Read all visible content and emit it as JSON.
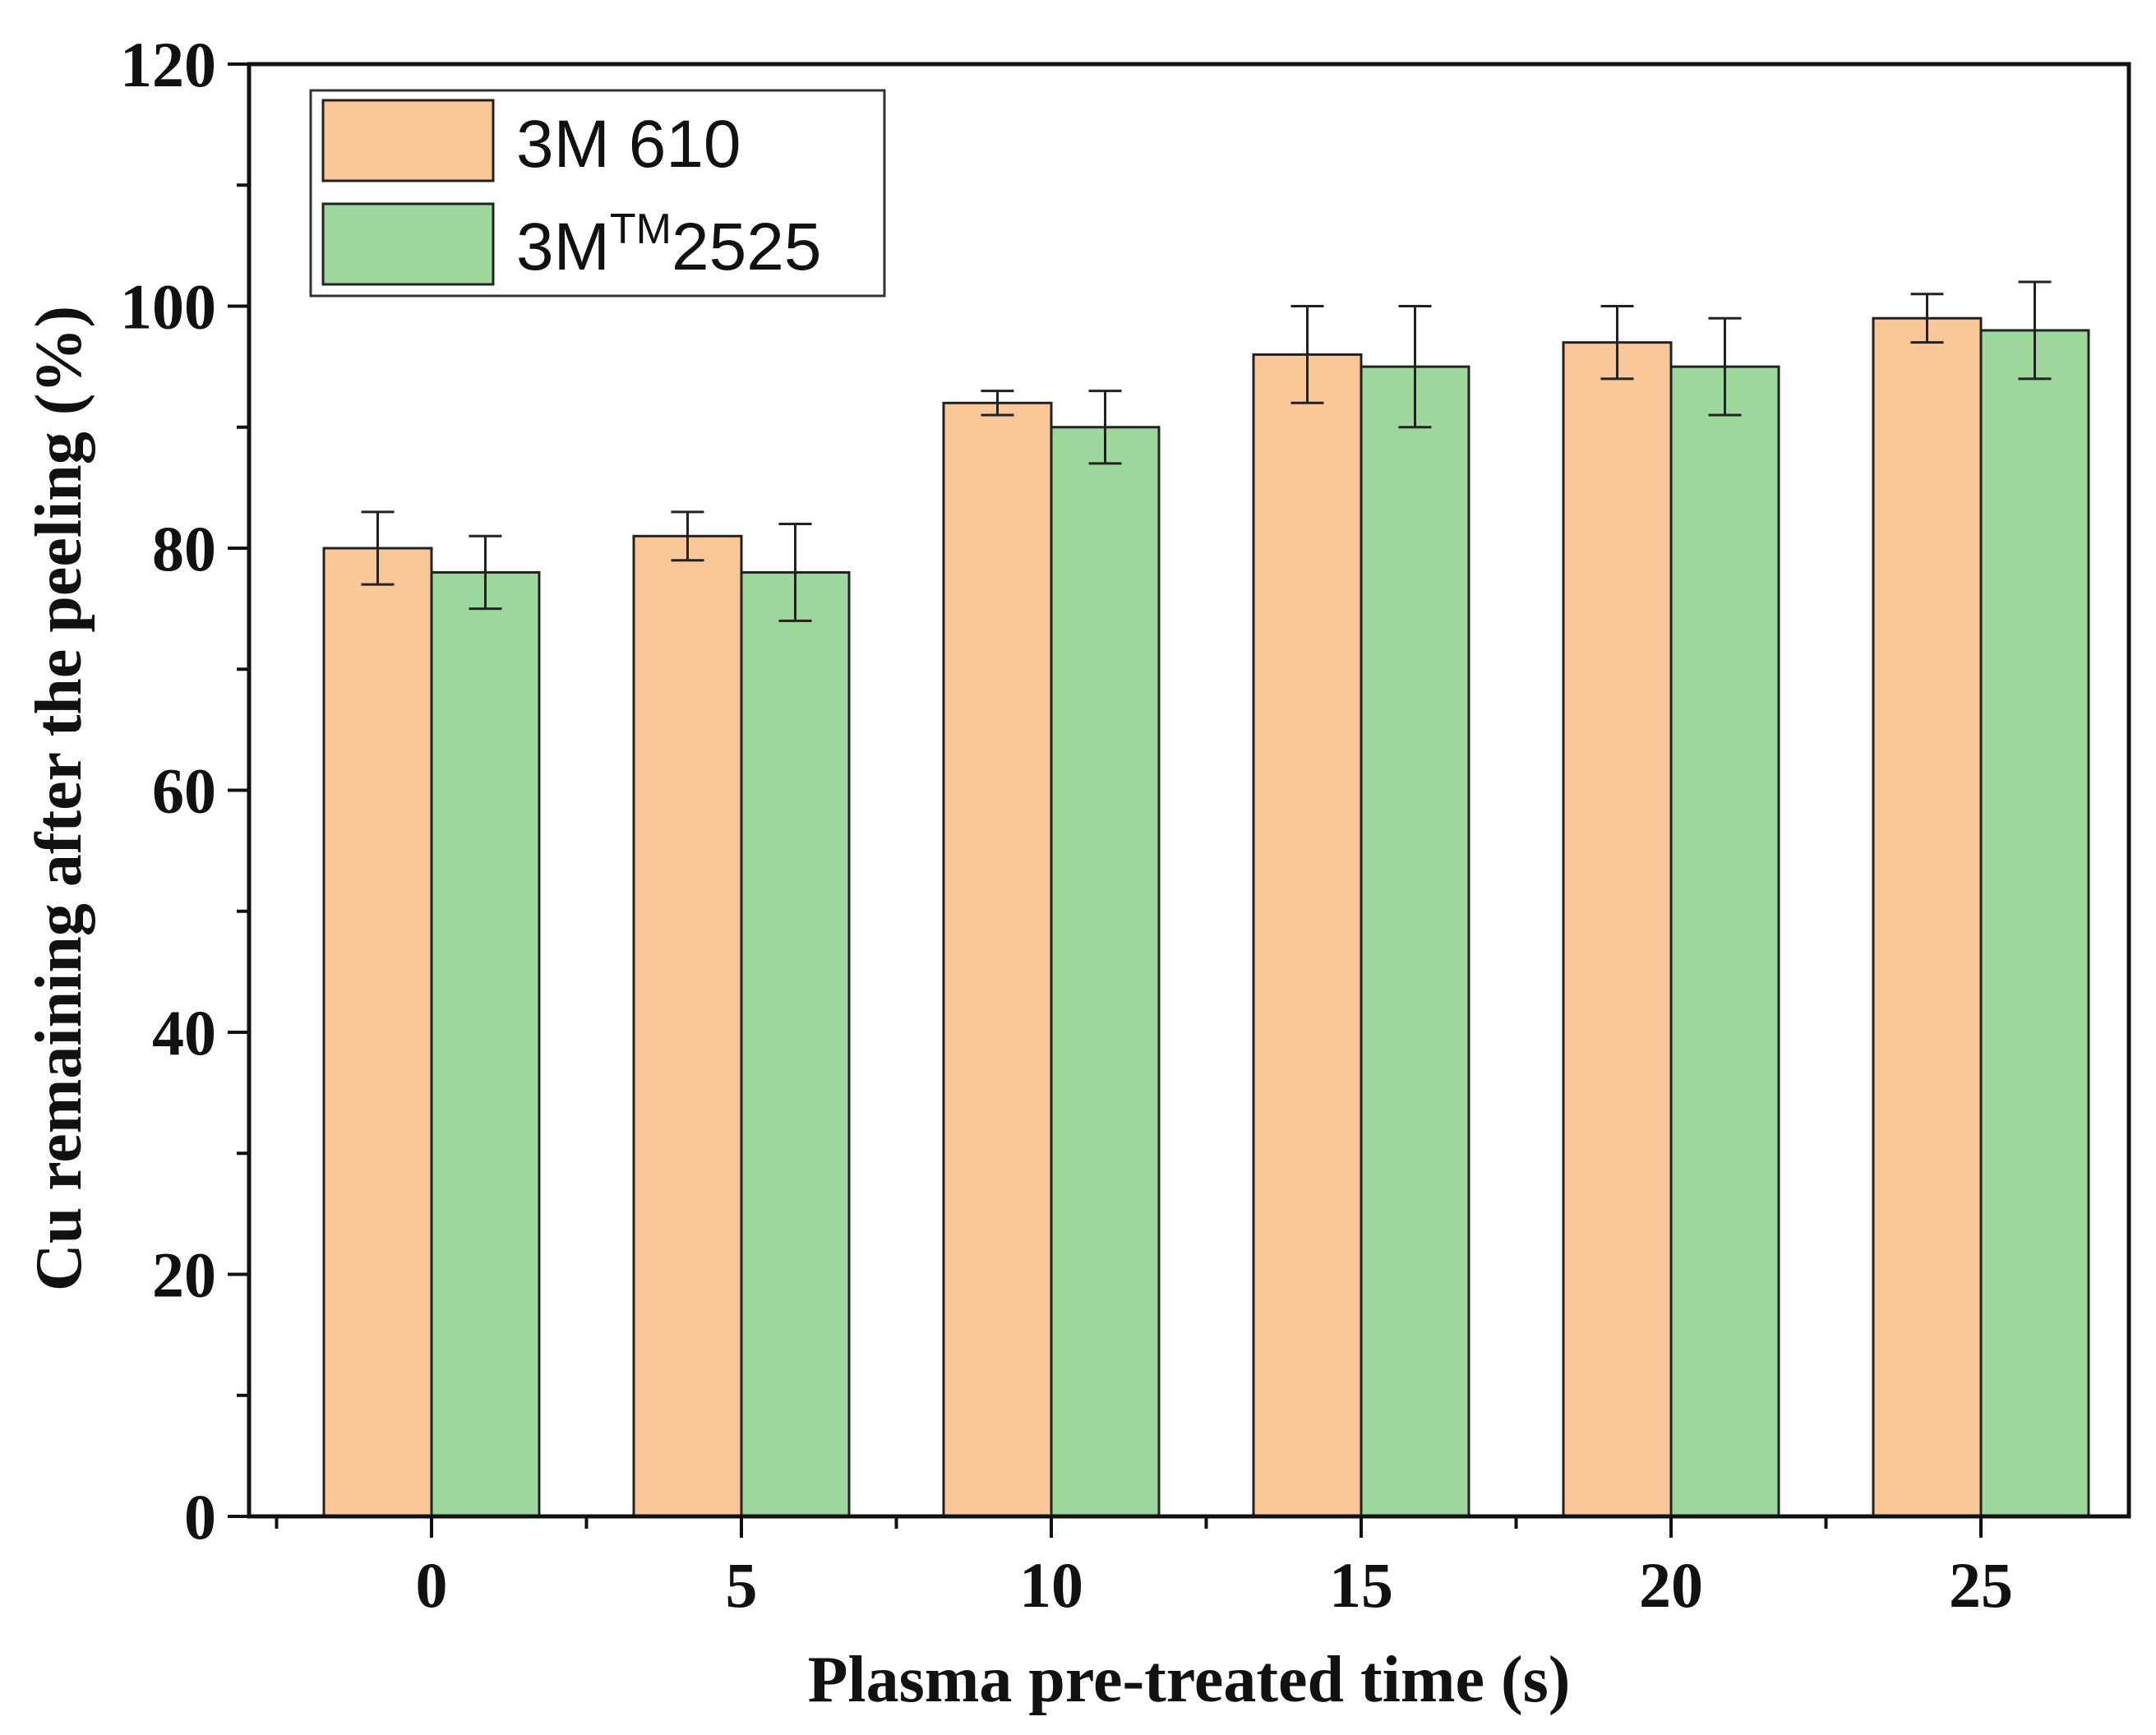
{
  "chart_data": {
    "type": "bar",
    "title": "",
    "xlabel": "Plasma pre-treated time (s)",
    "ylabel": "Cu remaining after the peeling (%)",
    "categories": [
      "0",
      "5",
      "10",
      "15",
      "20",
      "25"
    ],
    "ylim": [
      0,
      120
    ],
    "yticks": [
      "0",
      "20",
      "40",
      "60",
      "80",
      "100",
      "120"
    ],
    "grid": false,
    "legend_position": "top-left",
    "series": [
      {
        "name": "3M 610",
        "legend_base": "3M 610",
        "legend_sup": "",
        "legend_tail": "",
        "color": "#FAC898",
        "values": [
          80,
          81,
          92,
          96,
          97,
          99
        ],
        "err_low": [
          77,
          79,
          91,
          92,
          94,
          97
        ],
        "err_high": [
          83,
          83,
          93,
          100,
          100,
          101
        ]
      },
      {
        "name": "3M™ 2525",
        "legend_base": "3M",
        "legend_sup": "TM",
        "legend_tail": "2525",
        "color": "#9DD79C",
        "values": [
          78,
          78,
          90,
          95,
          95,
          98
        ],
        "err_low": [
          75,
          74,
          87,
          90,
          91,
          94
        ],
        "err_high": [
          81,
          82,
          93,
          100,
          99,
          102
        ]
      }
    ]
  }
}
